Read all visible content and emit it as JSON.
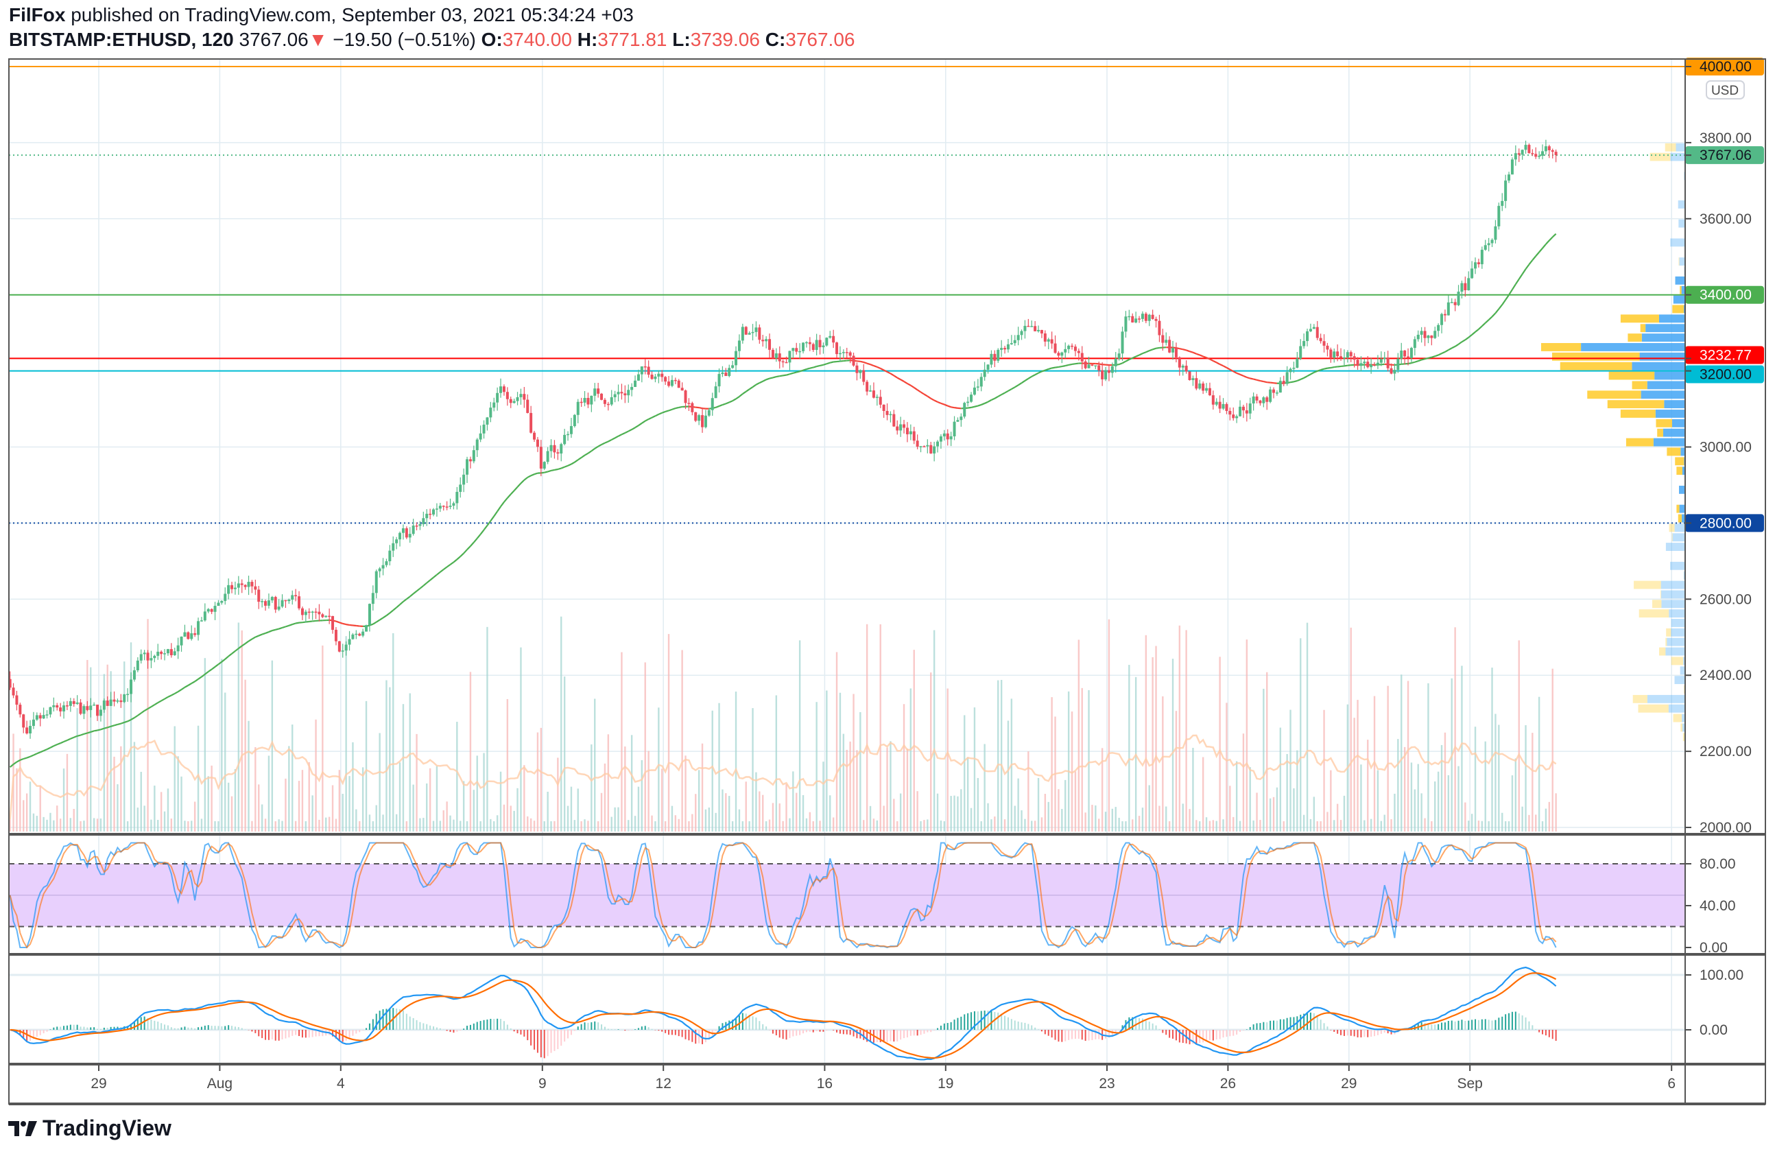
{
  "header": {
    "author": "FilFox",
    "published": "published on TradingView.com, September 03, 2021 05:34:24 +03",
    "symbol": "BITSTAMP:ETHUSD, 120",
    "last": "3767.06",
    "change": "−19.50 (−0.51%)",
    "o_label": "O:",
    "o": "3740.00",
    "h_label": "H:",
    "h": "3771.81",
    "l_label": "L:",
    "l": "3739.06",
    "c_label": "C:",
    "c": "3767.06"
  },
  "currency_badge": "USD",
  "logo": "TradingView",
  "colors": {
    "up": "#26a69a",
    "down": "#ef5350",
    "candle_up": "#53b987",
    "candle_down": "#eb4d5c",
    "ma": "#4caf50",
    "ma_down": "#f44336",
    "stoch_k": "#2196f3",
    "stoch_d": "#ff6d00",
    "macd": "#2196f3",
    "signal": "#ff6d00"
  },
  "chart_data": {
    "type": "candlestick",
    "interval_hours": 2,
    "price_axis": {
      "range": [
        2000,
        4000
      ],
      "ticks": [
        2000,
        2200,
        2400,
        2600,
        3000,
        3600,
        3800
      ]
    },
    "x_ticks": [
      {
        "label": "29",
        "day": 0
      },
      {
        "label": "Aug",
        "day": 3
      },
      {
        "label": "4",
        "day": 6
      },
      {
        "label": "9",
        "day": 11
      },
      {
        "label": "12",
        "day": 14
      },
      {
        "label": "16",
        "day": 18
      },
      {
        "label": "19",
        "day": 21
      },
      {
        "label": "23",
        "day": 25
      },
      {
        "label": "26",
        "day": 28
      },
      {
        "label": "29",
        "day": 31
      },
      {
        "label": "Sep",
        "day": 34
      },
      {
        "label": "6",
        "day": 39
      }
    ],
    "price_path_day_vs_close": [
      [
        -2.2,
        2390
      ],
      [
        -1.8,
        2210
      ],
      [
        -1.5,
        2250
      ],
      [
        -1,
        2300
      ],
      [
        0,
        2290
      ],
      [
        1,
        2420
      ],
      [
        2,
        2460
      ],
      [
        3,
        2600
      ],
      [
        3.8,
        2640
      ],
      [
        4,
        2570
      ],
      [
        5,
        2570
      ],
      [
        6,
        2480
      ],
      [
        6.5,
        2490
      ],
      [
        7,
        2700
      ],
      [
        8,
        2790
      ],
      [
        9,
        2925
      ],
      [
        10,
        3130
      ],
      [
        10.5,
        3160
      ],
      [
        11,
        2950
      ],
      [
        11.4,
        2990
      ],
      [
        12,
        3130
      ],
      [
        13,
        3150
      ],
      [
        14,
        3220
      ],
      [
        15,
        3060
      ],
      [
        16,
        3300
      ],
      [
        17,
        3250
      ],
      [
        18,
        3280
      ],
      [
        19,
        3190
      ],
      [
        20,
        3040
      ],
      [
        21,
        2990
      ],
      [
        22,
        3220
      ],
      [
        23,
        3280
      ],
      [
        24,
        3240
      ],
      [
        25,
        3200
      ],
      [
        25.5,
        3350
      ],
      [
        26,
        3340
      ],
      [
        27,
        3190
      ],
      [
        28,
        3110
      ],
      [
        29,
        3130
      ],
      [
        30,
        3270
      ],
      [
        31,
        3240
      ],
      [
        32,
        3200
      ],
      [
        33,
        3300
      ],
      [
        34,
        3430
      ],
      [
        34.6,
        3560
      ],
      [
        35,
        3740
      ],
      [
        35.4,
        3800
      ],
      [
        36.14,
        3767.06
      ]
    ],
    "moving_average": {
      "type": "EMA",
      "length_bars": 50
    },
    "horizontal_levels": [
      {
        "price": 4000,
        "label": "4000.00",
        "color": "#ff9800",
        "text": "#131722",
        "style": "solid"
      },
      {
        "price": 3767.06,
        "label": "3767.06",
        "color": "#53b987",
        "text": "#131722",
        "style": "dotted"
      },
      {
        "price": 3400,
        "label": "3400.00",
        "color": "#4caf50",
        "text": "#ffffff",
        "style": "solid"
      },
      {
        "price": 3232.77,
        "label": "3232.77",
        "color": "#ff0000",
        "text": "#ffffff",
        "style": "solid"
      },
      {
        "price": 3200,
        "label": "3200.00",
        "color": "#00bcd4",
        "text": "#131722",
        "style": "solid"
      },
      {
        "price": 2800,
        "label": "2800.00",
        "color": "#0d47a1",
        "text": "#ffffff",
        "style": "dotted"
      }
    ],
    "stoch_rsi": {
      "range": [
        0,
        100
      ],
      "ticks": [
        {
          "v": 80,
          "label": "80.00"
        },
        {
          "v": 40,
          "label": "40.00"
        },
        {
          "v": 0,
          "label": "0.00"
        }
      ],
      "upper_band": 80,
      "lower_band": 20
    },
    "macd": {
      "fast": 12,
      "slow": 26,
      "signal": 9,
      "ticks": [
        {
          "v": 100,
          "label": "100.00"
        },
        {
          "v": 0,
          "label": "0.00"
        }
      ]
    }
  }
}
